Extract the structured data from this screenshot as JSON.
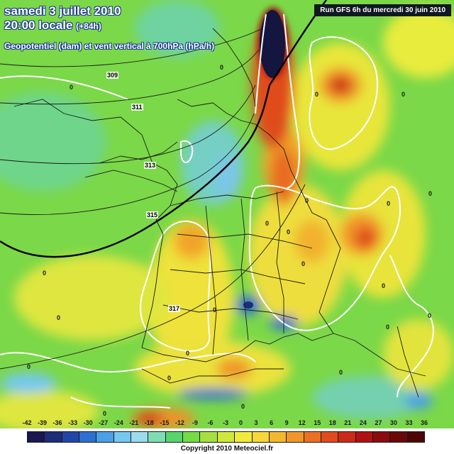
{
  "header": {
    "date_line": "samedi 3 juillet 2010",
    "time_line": "20:00 locale",
    "time_offset": "(+84h)",
    "parameter_line": "Geopotentiel (dam) et vent vertical à 700hPa (hPa/h)",
    "run_info": "Run GFS 6h du mercredi 30 juin 2010"
  },
  "colorbar": {
    "ticks": [
      "-42",
      "-39",
      "-36",
      "-33",
      "-30",
      "-27",
      "-24",
      "-21",
      "-18",
      "-15",
      "-12",
      "-9",
      "-6",
      "-3",
      "0",
      "3",
      "6",
      "9",
      "12",
      "15",
      "18",
      "21",
      "24",
      "27",
      "30",
      "33",
      "36"
    ],
    "colors": [
      "#1a1650",
      "#1c2d7a",
      "#2246a8",
      "#2e6fd0",
      "#4aa0e6",
      "#74c8f0",
      "#9adcec",
      "#7fdcb4",
      "#58d46c",
      "#74dc44",
      "#a4e040",
      "#d0e83c",
      "#f0ec3c",
      "#f6d838",
      "#f4b830",
      "#f0962a",
      "#ea7024",
      "#e04c1e",
      "#cc2a18",
      "#b01214",
      "#8a0c10",
      "#6a0808",
      "#4c0606"
    ]
  },
  "isohypses": {
    "labels": [
      "309",
      "311",
      "313",
      "315",
      "317"
    ]
  },
  "zero_labels": [
    "0",
    "0",
    "0",
    "0",
    "0",
    "0",
    "0",
    "0",
    "0",
    "0",
    "0",
    "0",
    "0",
    "0",
    "0",
    "0",
    "0",
    "0",
    "0",
    "0",
    "0",
    "0"
  ],
  "footer": {
    "copyright": "Copyright 2010 Meteociel.fr"
  }
}
